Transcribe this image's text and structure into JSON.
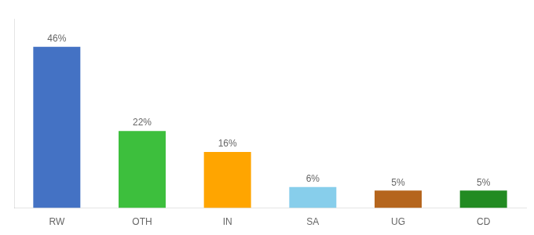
{
  "chart_data": {
    "type": "bar",
    "categories": [
      "RW",
      "OTH",
      "IN",
      "SA",
      "UG",
      "CD"
    ],
    "values": [
      46,
      22,
      16,
      6,
      5,
      5
    ],
    "value_labels": [
      "46%",
      "22%",
      "16%",
      "6%",
      "5%",
      "5%"
    ],
    "colors": [
      "#4472C4",
      "#3DBF3D",
      "#FFA500",
      "#87CEEB",
      "#B5651D",
      "#228B22"
    ],
    "ylim": [
      0,
      54
    ],
    "grid": false,
    "legend": false,
    "data_labels": true,
    "tick_labels": "x"
  }
}
